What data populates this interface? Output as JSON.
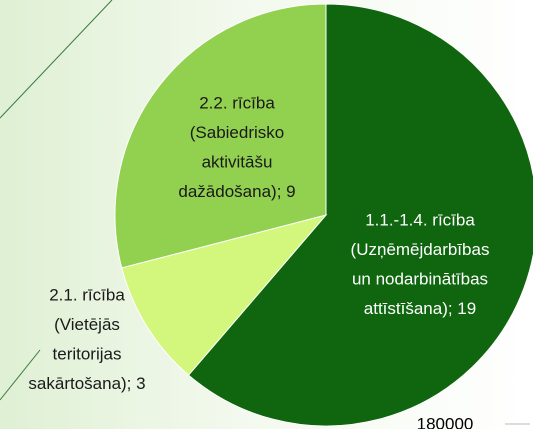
{
  "chart_data": {
    "type": "pie",
    "categories": [
      "1.1.-1.4. rīcība (Uzņēmējdarbības un nodarbinātības attīstīšana)",
      "2.1. rīcība (Vietējās teritorijas sakārtošana)",
      "2.2. rīcība (Sabiedrisko aktivitāšu dažādošana)"
    ],
    "values": [
      19,
      3,
      9
    ],
    "colors": [
      "#0f660f",
      "#d3f77c",
      "#92d050"
    ],
    "value_labels": [
      [
        "1.1.-1.4. rīcība",
        "(Uzņēmējdarbības",
        "un nodarbinātības",
        "attīstīšana); 19"
      ],
      [
        "2.1. rīcība",
        "(Vietējās",
        "teritorijas",
        "sakārtošana); 3"
      ],
      [
        "2.2. rīcība",
        "(Sabiedrisko",
        "aktivitāšu",
        "dažādošana); 9"
      ]
    ],
    "annotations": [
      "180000"
    ]
  }
}
